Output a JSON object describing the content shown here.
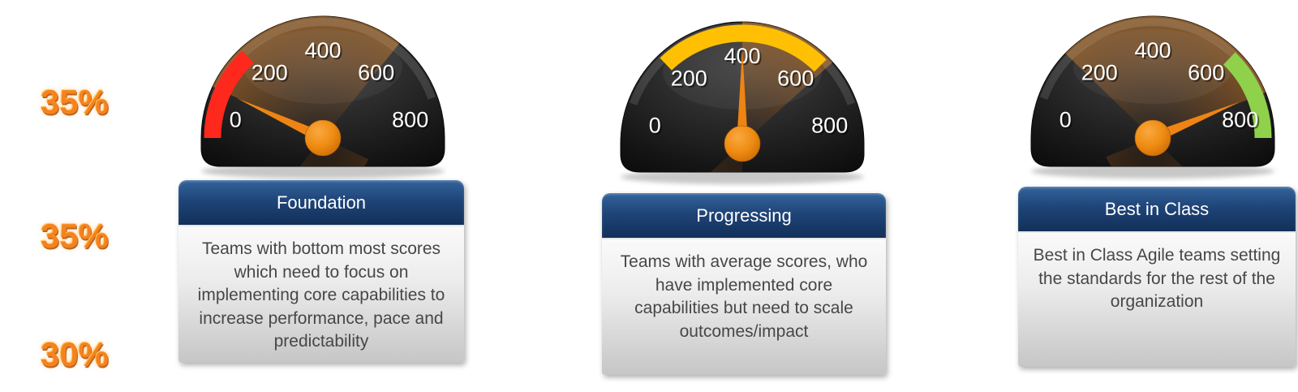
{
  "background_color": "#ffffff",
  "percent_labels": [
    "35%",
    "35%",
    "30%"
  ],
  "percent_color": "#F6821F",
  "cards": [
    {
      "title": "Foundation",
      "body": "Teams with bottom most scores which need to focus on implementing core capabilities to increase performance, pace and predictability"
    },
    {
      "title": "Progressing",
      "body": "Teams with average scores, who have implemented core capabilities but need to scale outcomes/impact"
    },
    {
      "title": "Best in Class",
      "body": "Best in Class Agile teams setting the standards for the rest of the organization"
    }
  ],
  "chart_data": [
    {
      "type": "gauge",
      "title": "Foundation",
      "min": 0,
      "max": 800,
      "tick_labels": [
        "0",
        "200",
        "400",
        "600",
        "800"
      ],
      "value": 110,
      "zone": {
        "from": 0,
        "to": 210,
        "color": "#FE281C"
      },
      "share_label": "35%",
      "glow": {
        "start_deg": 155,
        "end_deg": 51
      }
    },
    {
      "type": "gauge",
      "title": "Progressing",
      "min": 0,
      "max": 800,
      "tick_labels": [
        "0",
        "200",
        "400",
        "600",
        "800"
      ],
      "value": 400,
      "zone": {
        "from": 205,
        "to": 600,
        "color": "#FFC003"
      },
      "share_label": "35%",
      "glow": {
        "start_deg": 90,
        "end_deg": 42
      }
    },
    {
      "type": "gauge",
      "title": "Best in Class",
      "min": 0,
      "max": 800,
      "tick_labels": [
        "0",
        "200",
        "400",
        "600",
        "800"
      ],
      "value": 700,
      "zone": {
        "from": 595,
        "to": 800,
        "color": "#8FD14A"
      },
      "share_label": "30%",
      "glow": {
        "start_deg": 136,
        "end_deg": 22
      }
    }
  ],
  "gauge_style": {
    "needle_color": "#EE8414",
    "hub_color": "#EF8D13",
    "dial_text_color": "#ffffff"
  }
}
